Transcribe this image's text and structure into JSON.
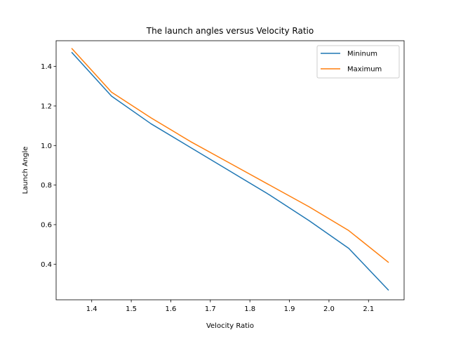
{
  "chart_data": {
    "type": "line",
    "title": "The launch angles versus Velocity Ratio",
    "xlabel": "Velocity Ratio",
    "ylabel": "Launch Angle",
    "xlim": [
      1.31,
      2.19
    ],
    "ylim": [
      0.22,
      1.53
    ],
    "xticks": [
      1.4,
      1.5,
      1.6,
      1.7,
      1.8,
      1.9,
      2.0,
      2.1
    ],
    "xtick_labels": [
      "1.4",
      "1.5",
      "1.6",
      "1.7",
      "1.8",
      "1.9",
      "2.0",
      "2.1"
    ],
    "yticks": [
      0.4,
      0.6,
      0.8,
      1.0,
      1.2,
      1.4
    ],
    "ytick_labels": [
      "0.4",
      "0.6",
      "0.8",
      "1.0",
      "1.2",
      "1.4"
    ],
    "grid": false,
    "legend_position": "top-right",
    "x": [
      1.35,
      1.45,
      1.55,
      1.65,
      1.75,
      1.85,
      1.95,
      2.05,
      2.15
    ],
    "series": [
      {
        "name": "Mininum",
        "color": "#1f77b4",
        "values": [
          1.47,
          1.25,
          1.11,
          0.99,
          0.87,
          0.75,
          0.62,
          0.48,
          0.27
        ]
      },
      {
        "name": "Maximum",
        "color": "#ff7f0e",
        "values": [
          1.49,
          1.27,
          1.14,
          1.02,
          0.91,
          0.8,
          0.69,
          0.57,
          0.41
        ]
      }
    ]
  }
}
